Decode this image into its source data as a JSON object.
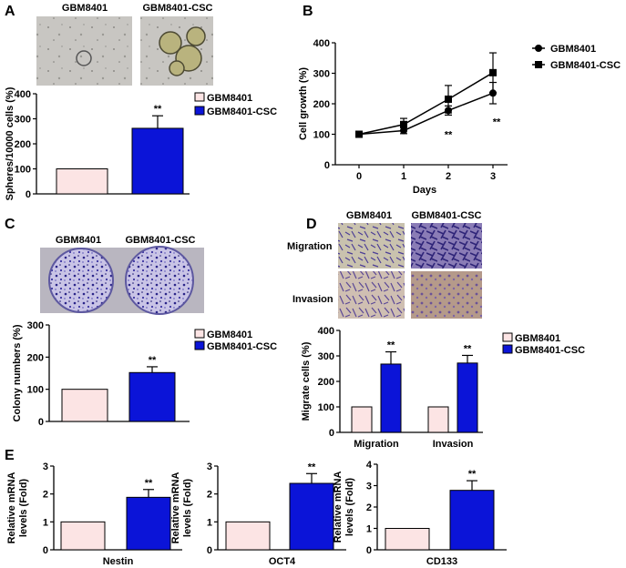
{
  "colors": {
    "ctrl_fill": "#fce4e4",
    "csc_fill": "#0b14d8",
    "axis": "#000000"
  },
  "panelA": {
    "label": "A",
    "image_labels": [
      "GBM8401",
      "GBM8401-CSC"
    ],
    "legend": [
      "GBM8401",
      "GBM8401-CSC"
    ],
    "chart_data": {
      "type": "bar",
      "categories": [
        "GBM8401",
        "GBM8401-CSC"
      ],
      "values": [
        100,
        262
      ],
      "errors": [
        0,
        50
      ],
      "ylim": [
        0,
        400
      ],
      "yticks": [
        "0",
        "100",
        "200",
        "300",
        "400"
      ],
      "ylabel": "Spheres/10000 cells (%)",
      "sig": "**"
    }
  },
  "panelB": {
    "label": "B",
    "legend": [
      "GBM8401",
      "GBM8401-CSC"
    ],
    "chart_data": {
      "type": "line",
      "x": [
        0,
        1,
        2,
        3
      ],
      "xlim": [
        0,
        3.3
      ],
      "ylim": [
        0,
        400
      ],
      "xticks": [
        "0",
        "1",
        "2",
        "3"
      ],
      "yticks": [
        "0",
        "100",
        "200",
        "300",
        "400"
      ],
      "xlabel": "Days",
      "ylabel": "Cell growth (%)",
      "series": [
        {
          "name": "GBM8401",
          "marker": "circle",
          "values": [
            100,
            112,
            178,
            235
          ],
          "errors": [
            0,
            10,
            15,
            35
          ]
        },
        {
          "name": "GBM8401-CSC",
          "marker": "square",
          "values": [
            100,
            132,
            215,
            302
          ],
          "errors": [
            0,
            20,
            45,
            65
          ]
        }
      ],
      "sig": [
        "**",
        "**"
      ]
    }
  },
  "panelC": {
    "label": "C",
    "image_labels": [
      "GBM8401",
      "GBM8401-CSC"
    ],
    "legend": [
      "GBM8401",
      "GBM8401-CSC"
    ],
    "chart_data": {
      "type": "bar",
      "categories": [
        "GBM8401",
        "GBM8401-CSC"
      ],
      "values": [
        100,
        152
      ],
      "errors": [
        0,
        18
      ],
      "ylim": [
        0,
        300
      ],
      "yticks": [
        "0",
        "100",
        "200",
        "300"
      ],
      "ylabel": "Colony numbers (%)",
      "sig": "**"
    }
  },
  "panelD": {
    "label": "D",
    "image_labels": [
      "GBM8401",
      "GBM8401-CSC"
    ],
    "row_labels": [
      "Migration",
      "Invasion"
    ],
    "legend": [
      "GBM8401",
      "GBM8401-CSC"
    ],
    "chart_data": {
      "type": "bar",
      "categories": [
        "Migration",
        "Invasion"
      ],
      "series": [
        {
          "name": "GBM8401",
          "values": [
            100,
            100
          ],
          "errors": [
            0,
            0
          ]
        },
        {
          "name": "GBM8401-CSC",
          "values": [
            268,
            272
          ],
          "errors": [
            48,
            30
          ]
        }
      ],
      "ylim": [
        0,
        400
      ],
      "yticks": [
        "0",
        "100",
        "200",
        "300",
        "400"
      ],
      "ylabel": "Migrate cells (%)",
      "sig": [
        "**",
        "**"
      ]
    }
  },
  "panelE": {
    "label": "E",
    "charts": [
      {
        "type": "bar",
        "xlabel": "Nestin",
        "values": [
          1,
          1.88
        ],
        "errors": [
          0,
          0.28
        ],
        "ylim": [
          0,
          3
        ],
        "yticks": [
          "0",
          "1",
          "2",
          "3"
        ],
        "ylabel": [
          "Relative mRNA",
          "levels (Fold)"
        ],
        "sig": "**"
      },
      {
        "type": "bar",
        "xlabel": "OCT4",
        "values": [
          1,
          2.38
        ],
        "errors": [
          0,
          0.35
        ],
        "ylim": [
          0,
          3
        ],
        "yticks": [
          "0",
          "1",
          "2",
          "3"
        ],
        "ylabel": [
          "Relative mRNA",
          "levels (Fold)"
        ],
        "sig": "**"
      },
      {
        "type": "bar",
        "xlabel": "CD133",
        "values": [
          1,
          2.78
        ],
        "errors": [
          0,
          0.45
        ],
        "ylim": [
          0,
          4
        ],
        "yticks": [
          "0",
          "1",
          "2",
          "3",
          "4"
        ],
        "ylabel": [
          "Relative mRNA",
          "levels (Fold)"
        ],
        "sig": "**"
      }
    ]
  }
}
